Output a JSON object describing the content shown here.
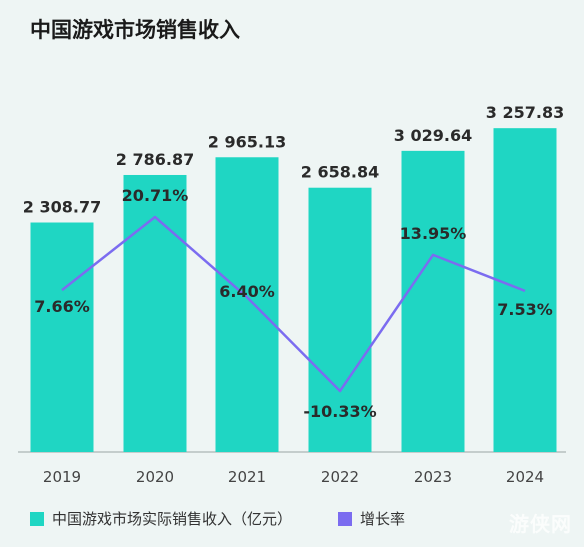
{
  "title": "中国游戏市场销售收入",
  "watermark": "游侠网",
  "colors": {
    "bar": "#1fd6c3",
    "line": "#7b6cf0",
    "text": "#2a2a2a",
    "axis": "#9aa5a4"
  },
  "chart_data": {
    "type": "bar",
    "categories": [
      "2019",
      "2020",
      "2021",
      "2022",
      "2023",
      "2024"
    ],
    "series": [
      {
        "name": "中国游戏市场实际销售收入（亿元）",
        "type": "bar",
        "values": [
          2308.77,
          2786.87,
          2965.13,
          2658.84,
          3029.64,
          3257.83
        ],
        "labels": [
          "2 308.77",
          "2 786.87",
          "2 965.13",
          "2 658.84",
          "3 029.64",
          "3 257.83"
        ]
      },
      {
        "name": "增长率",
        "type": "line",
        "values": [
          7.66,
          20.71,
          6.4,
          -10.33,
          13.95,
          7.53
        ],
        "labels": [
          "7.66%",
          "20.71%",
          "6.40%",
          "-10.33%",
          "13.95%",
          "7.53%"
        ]
      }
    ],
    "legend": "bottom-left",
    "grid": false
  }
}
